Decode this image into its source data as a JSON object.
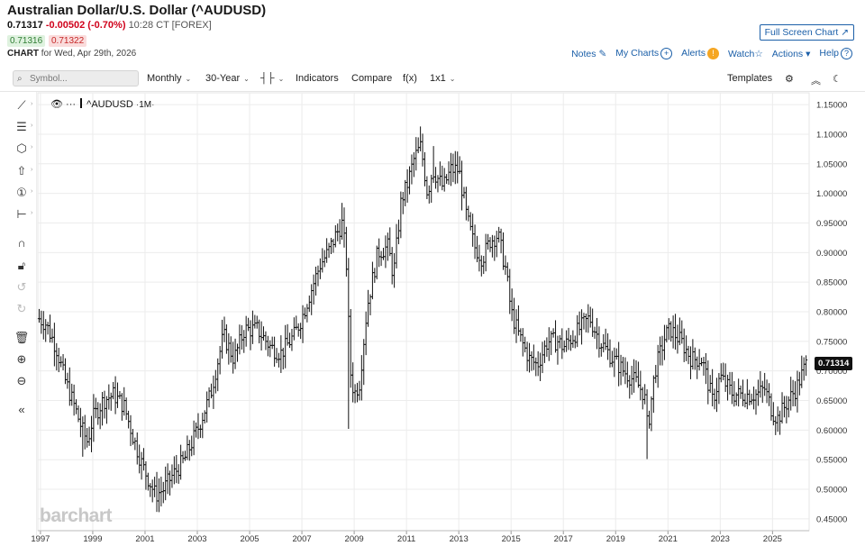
{
  "header": {
    "title": "Australian Dollar/U.S. Dollar (^AUDUSD)",
    "last_price": "0.71317",
    "change": "-0.00502 (-0.70%)",
    "timestamp": "10:28 CT [FOREX]",
    "bid": "0.71316",
    "ask": "0.71322",
    "chart_label": "CHART",
    "chart_date": "for Wed, Apr 29th, 2026"
  },
  "top_links": {
    "full_screen": "Full Screen Chart",
    "notes": "Notes",
    "my_charts": "My Charts",
    "alerts": "Alerts",
    "watch": "Watch",
    "actions": "Actions",
    "help": "Help"
  },
  "toolbar": {
    "symbol_placeholder": "Symbol...",
    "interval": "Monthly",
    "period": "30-Year",
    "indicators": "Indicators",
    "compare": "Compare",
    "fx": "f(x)",
    "layout": "1x1",
    "templates": "Templates"
  },
  "legend": {
    "symbol": "^AUDUSD",
    "interval": "1M"
  },
  "price_tag": "0.71314",
  "watermark": "barchart",
  "chart_data": {
    "type": "ohlc",
    "interval": "monthly",
    "title": "Australian Dollar/U.S. Dollar (^AUDUSD)",
    "ylim": [
      0.43,
      1.17
    ],
    "y_ticks": [
      "1.15000",
      "1.10000",
      "1.05000",
      "1.00000",
      "0.95000",
      "0.90000",
      "0.85000",
      "0.80000",
      "0.75000",
      "0.70000",
      "0.65000",
      "0.60000",
      "0.55000",
      "0.50000",
      "0.45000"
    ],
    "x_ticks": [
      "1997",
      "1999",
      "2001",
      "2003",
      "2005",
      "2007",
      "2009",
      "2011",
      "2013",
      "2015",
      "2017",
      "2019",
      "2021",
      "2023",
      "2025"
    ],
    "x_range": [
      1996.9,
      2026.4
    ],
    "last_value": 0.71314,
    "grid": true,
    "series": [
      {
        "price_anchors": [
          [
            1996.9,
            0.79
          ],
          [
            1997.2,
            0.78
          ],
          [
            1997.6,
            0.74
          ],
          [
            1997.9,
            0.69
          ],
          [
            1998.3,
            0.64
          ],
          [
            1998.6,
            0.6
          ],
          [
            1998.8,
            0.58
          ],
          [
            1999.0,
            0.62
          ],
          [
            1999.4,
            0.65
          ],
          [
            1999.8,
            0.66
          ],
          [
            2000.2,
            0.64
          ],
          [
            2000.6,
            0.58
          ],
          [
            2000.9,
            0.54
          ],
          [
            2001.2,
            0.51
          ],
          [
            2001.4,
            0.49
          ],
          [
            2001.7,
            0.5
          ],
          [
            2002.0,
            0.52
          ],
          [
            2002.5,
            0.55
          ],
          [
            2003.0,
            0.6
          ],
          [
            2003.5,
            0.66
          ],
          [
            2004.0,
            0.76
          ],
          [
            2004.4,
            0.72
          ],
          [
            2004.8,
            0.77
          ],
          [
            2005.3,
            0.77
          ],
          [
            2005.8,
            0.74
          ],
          [
            2006.2,
            0.73
          ],
          [
            2006.7,
            0.76
          ],
          [
            2007.0,
            0.79
          ],
          [
            2007.3,
            0.83
          ],
          [
            2007.7,
            0.88
          ],
          [
            2008.0,
            0.9
          ],
          [
            2008.3,
            0.93
          ],
          [
            2008.55,
            0.95
          ],
          [
            2008.7,
            0.88
          ],
          [
            2008.85,
            0.7
          ],
          [
            2009.0,
            0.66
          ],
          [
            2009.2,
            0.68
          ],
          [
            2009.5,
            0.81
          ],
          [
            2009.9,
            0.9
          ],
          [
            2010.3,
            0.91
          ],
          [
            2010.5,
            0.86
          ],
          [
            2010.8,
            0.99
          ],
          [
            2011.0,
            1.01
          ],
          [
            2011.3,
            1.06
          ],
          [
            2011.55,
            1.08
          ],
          [
            2011.8,
            1.0
          ],
          [
            2012.0,
            1.04
          ],
          [
            2012.4,
            1.01
          ],
          [
            2012.7,
            1.04
          ],
          [
            2013.0,
            1.04
          ],
          [
            2013.3,
            0.96
          ],
          [
            2013.6,
            0.91
          ],
          [
            2013.9,
            0.89
          ],
          [
            2014.2,
            0.92
          ],
          [
            2014.5,
            0.93
          ],
          [
            2014.8,
            0.87
          ],
          [
            2015.0,
            0.8
          ],
          [
            2015.3,
            0.76
          ],
          [
            2015.7,
            0.72
          ],
          [
            2016.0,
            0.71
          ],
          [
            2016.4,
            0.75
          ],
          [
            2016.8,
            0.75
          ],
          [
            2017.0,
            0.74
          ],
          [
            2017.4,
            0.76
          ],
          [
            2017.8,
            0.78
          ],
          [
            2018.0,
            0.79
          ],
          [
            2018.4,
            0.75
          ],
          [
            2018.9,
            0.72
          ],
          [
            2019.3,
            0.7
          ],
          [
            2019.8,
            0.68
          ],
          [
            2020.1,
            0.66
          ],
          [
            2020.22,
            0.6
          ],
          [
            2020.5,
            0.7
          ],
          [
            2020.9,
            0.76
          ],
          [
            2021.1,
            0.77
          ],
          [
            2021.5,
            0.75
          ],
          [
            2021.9,
            0.72
          ],
          [
            2022.3,
            0.72
          ],
          [
            2022.7,
            0.65
          ],
          [
            2023.0,
            0.69
          ],
          [
            2023.5,
            0.66
          ],
          [
            2023.9,
            0.66
          ],
          [
            2024.4,
            0.66
          ],
          [
            2024.7,
            0.67
          ],
          [
            2025.0,
            0.63
          ],
          [
            2025.2,
            0.62
          ],
          [
            2025.6,
            0.65
          ],
          [
            2025.9,
            0.67
          ],
          [
            2026.3,
            0.713
          ]
        ],
        "spikes": [
          [
            1998.6,
            0.555
          ],
          [
            2001.3,
            0.478
          ],
          [
            2001.5,
            0.475
          ],
          [
            2008.8,
            0.602
          ],
          [
            2011.55,
            1.11
          ],
          [
            2012.0,
            1.08
          ],
          [
            2020.22,
            0.551
          ],
          [
            2025.25,
            0.592
          ],
          [
            2008.5,
            0.984
          ]
        ]
      }
    ]
  }
}
